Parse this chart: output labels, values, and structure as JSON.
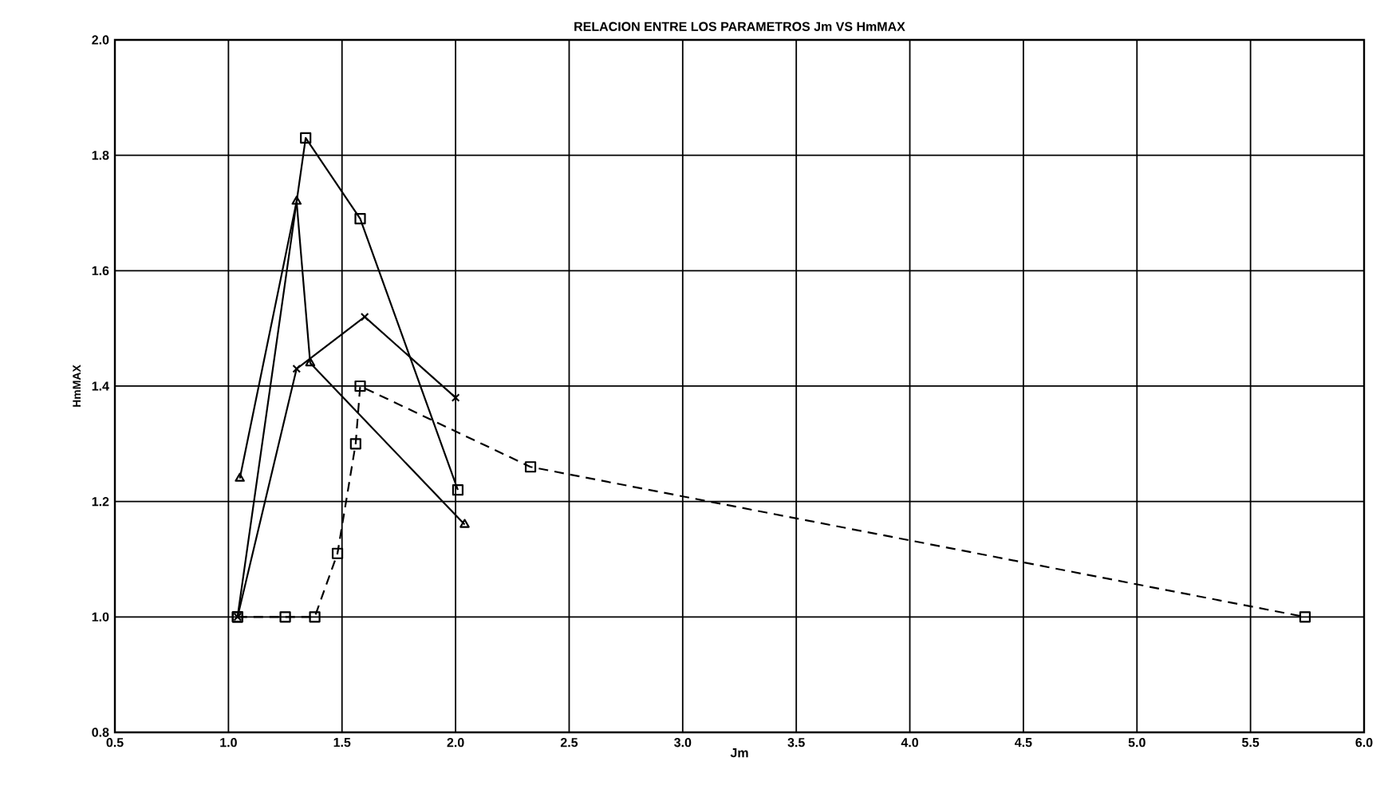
{
  "chart_data": {
    "type": "line",
    "title": "RELACION ENTRE LOS PARAMETROS Jm VS HmMAX",
    "xlabel": "Jm",
    "ylabel": "HmMAX",
    "xlim": [
      0.5,
      6.0
    ],
    "ylim": [
      0.8,
      2.0
    ],
    "xticks": [
      {
        "value": 0.5,
        "label": "0.5"
      },
      {
        "value": 1.0,
        "label": "1.0"
      },
      {
        "value": 1.5,
        "label": "1.5"
      },
      {
        "value": 2.0,
        "label": "2.0"
      },
      {
        "value": 2.5,
        "label": "2.5"
      },
      {
        "value": 3.0,
        "label": "3.0"
      },
      {
        "value": 3.5,
        "label": "3.5"
      },
      {
        "value": 4.0,
        "label": "4.0"
      },
      {
        "value": 4.5,
        "label": "4.5"
      },
      {
        "value": 5.0,
        "label": "5.0"
      },
      {
        "value": 5.5,
        "label": "5.5"
      },
      {
        "value": 6.0,
        "label": "6.0"
      }
    ],
    "yticks": [
      {
        "value": 0.8,
        "label": "0.8"
      },
      {
        "value": 1.0,
        "label": "1.0"
      },
      1.2,
      1.4,
      1.6,
      1.8,
      {
        "value": 2.0,
        "label": "2.0"
      }
    ],
    "grid": true,
    "series": [
      {
        "color": "#000000",
        "marker": "square",
        "line_style": "solid",
        "x": [
          1.04,
          1.34,
          1.58,
          2.01
        ],
        "values": [
          1.0,
          1.83,
          1.69,
          1.22
        ]
      },
      {
        "color": "#000000",
        "marker": "triangle",
        "line_style": "solid",
        "x": [
          1.05,
          1.3,
          1.36,
          2.04
        ],
        "values": [
          1.24,
          1.72,
          1.44,
          1.16
        ]
      },
      {
        "color": "#000000",
        "marker": "cross",
        "line_style": "solid",
        "x": [
          1.04,
          1.3,
          1.6,
          2.0
        ],
        "values": [
          1.0,
          1.43,
          1.52,
          1.38
        ]
      },
      {
        "color": "#000000",
        "marker": "square",
        "line_style": "dashed",
        "x": [
          1.04,
          1.25,
          1.38,
          1.48,
          1.56,
          1.58,
          2.33,
          5.74
        ],
        "values": [
          1.0,
          1.0,
          1.0,
          1.11,
          1.3,
          1.4,
          1.26,
          1.0
        ]
      }
    ]
  }
}
